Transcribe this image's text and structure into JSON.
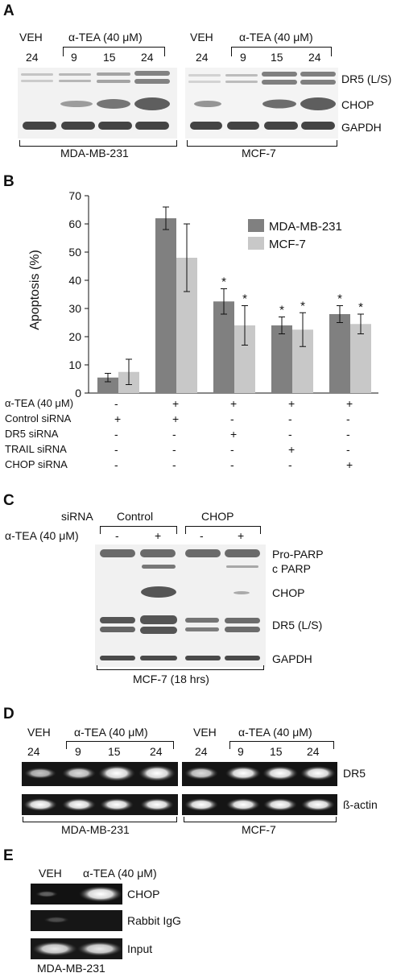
{
  "panels": {
    "A": {
      "label": "A",
      "veh": "VEH",
      "treat": "α-TEA (40 μM)",
      "times_left": [
        "24",
        "9",
        "15",
        "24"
      ],
      "times_right": [
        "24",
        "9",
        "15",
        "24"
      ],
      "bands": [
        "DR5 (L/S)",
        "CHOP",
        "GAPDH"
      ],
      "cell_left": "MDA-MB-231",
      "cell_right": "MCF-7"
    },
    "B": {
      "label": "B"
    },
    "C": {
      "label": "C",
      "sirna": "siRNA",
      "control": "Control",
      "chop": "CHOP",
      "treat": "α-TEA (40 μM)",
      "signs": [
        "-",
        "+",
        "-",
        "+"
      ],
      "bands": [
        "Pro-PARP",
        "c PARP",
        "CHOP",
        "DR5 (L/S)",
        "GAPDH"
      ],
      "footer": "MCF-7  (18 hrs)"
    },
    "D": {
      "label": "D",
      "veh": "VEH",
      "treat": "α-TEA (40 μM)",
      "times_left": [
        "24",
        "9",
        "15",
        "24"
      ],
      "times_right": [
        "24",
        "9",
        "15",
        "24"
      ],
      "bands": [
        "DR5",
        "ß-actin"
      ],
      "cell_left": "MDA-MB-231",
      "cell_right": "MCF-7"
    },
    "E": {
      "label": "E",
      "veh": "VEH",
      "treat": "α-TEA (40 μM)",
      "bands": [
        "CHOP",
        "Rabbit IgG",
        "Input"
      ],
      "cell": "MDA-MB-231"
    }
  },
  "chart_data": {
    "type": "bar",
    "ylabel": "Apoptosis (%)",
    "ylim": [
      0,
      70
    ],
    "yticks": [
      "0",
      "10",
      "20",
      "30",
      "40",
      "50",
      "60",
      "70"
    ],
    "series": [
      {
        "name": "MDA-MB-231",
        "color": "#808080",
        "values": [
          5.5,
          62,
          32.5,
          24,
          28
        ],
        "errors": [
          1.5,
          4,
          4.5,
          3,
          3
        ]
      },
      {
        "name": "MCF-7",
        "color": "#c8c8c8",
        "values": [
          7.5,
          48,
          24,
          22.5,
          24.5
        ],
        "errors": [
          4.5,
          12,
          7,
          6,
          3.5
        ]
      }
    ],
    "significance": [
      "",
      "",
      "*",
      "*",
      "*"
    ],
    "legend_position": "top-right",
    "conditions": [
      {
        "label": "α-TEA (40 μM)",
        "marks": [
          "-",
          "+",
          "+",
          "+",
          "+"
        ]
      },
      {
        "label": "Control siRNA",
        "marks": [
          "+",
          "+",
          "-",
          "-",
          "-"
        ]
      },
      {
        "label": "DR5 siRNA",
        "marks": [
          "-",
          "-",
          "+",
          "-",
          "-"
        ]
      },
      {
        "label": "TRAIL siRNA",
        "marks": [
          "-",
          "-",
          "-",
          "+",
          "-"
        ]
      },
      {
        "label": "CHOP siRNA",
        "marks": [
          "-",
          "-",
          "-",
          "-",
          "+"
        ]
      }
    ]
  }
}
